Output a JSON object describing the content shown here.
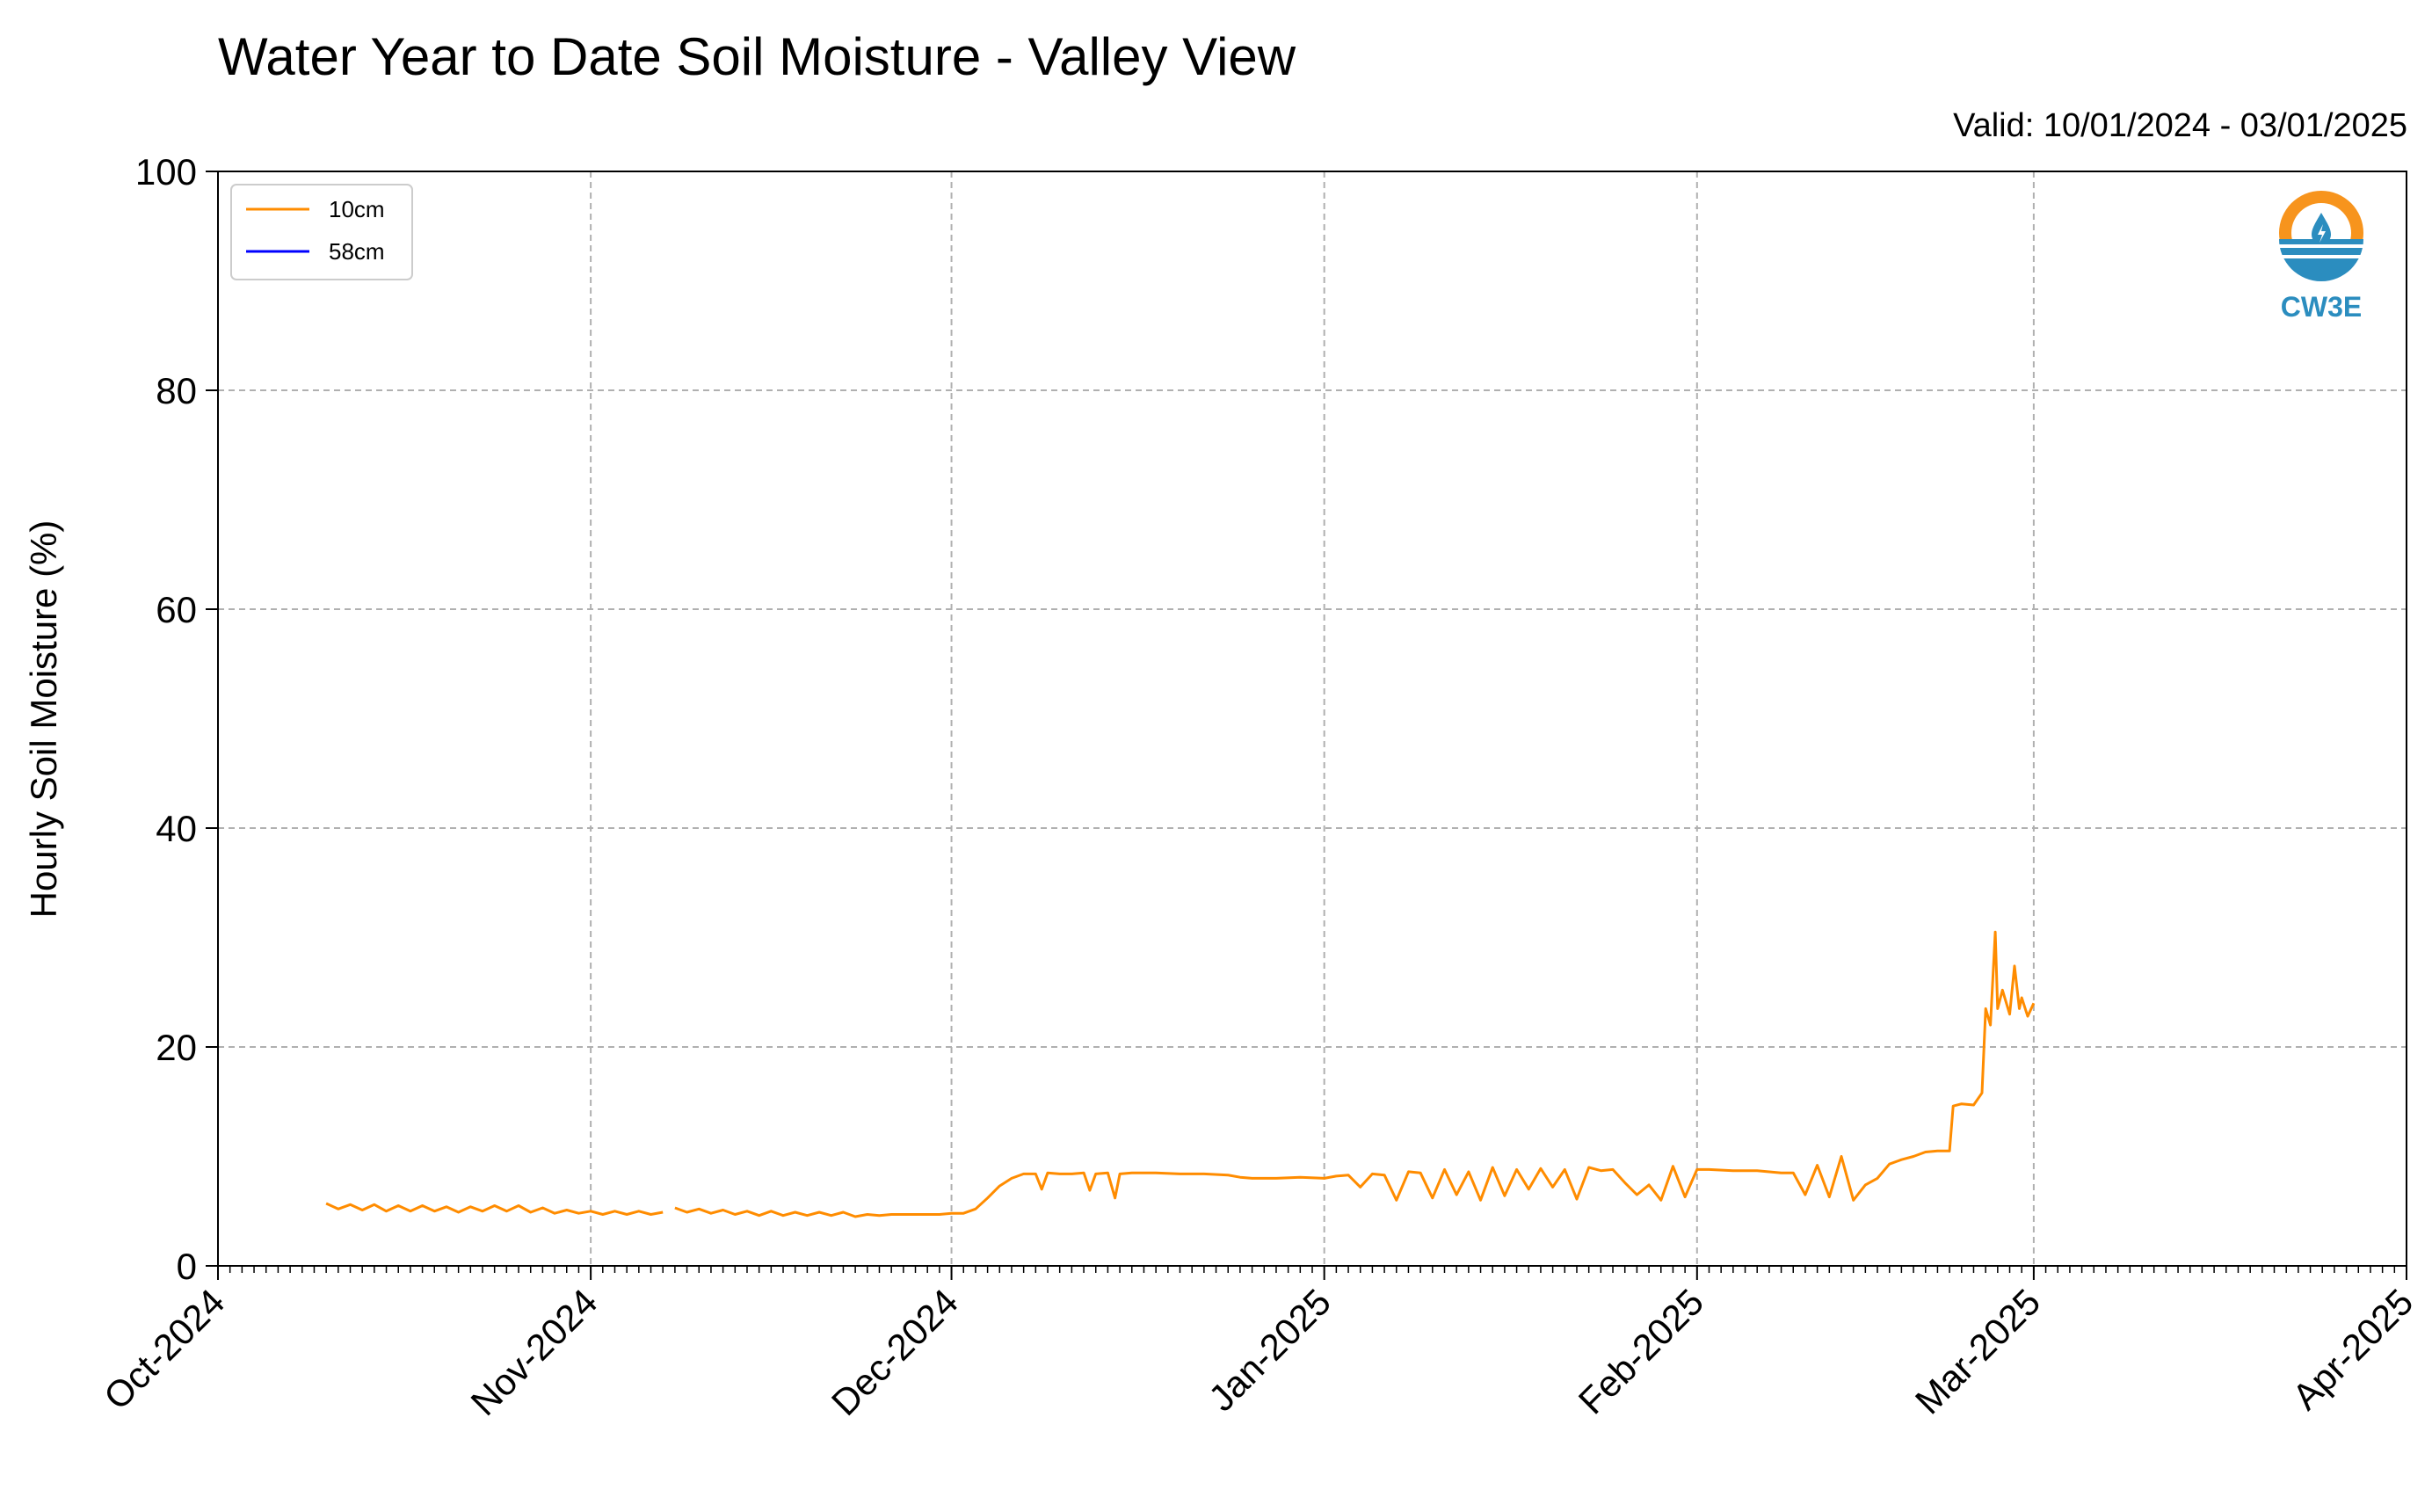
{
  "title": "Water Year to Date Soil Moisture - Valley View",
  "valid": "Valid: 10/01/2024 - 03/01/2025",
  "logo_text": "CW3E",
  "colors": {
    "series_10cm": "#ff8c00",
    "series_58cm": "#0000ff",
    "grid": "#b0b0b0",
    "logo_orange": "#f7941d",
    "logo_blue": "#2b8dbf"
  },
  "chart_data": {
    "type": "line",
    "ylabel": "Hourly Soil Moisture (%)",
    "ylim": [
      0,
      100
    ],
    "yticks": [
      "0",
      "20",
      "40",
      "60",
      "80",
      "100"
    ],
    "xlim": [
      "2024-10-01",
      "2025-04-01"
    ],
    "xticks": [
      {
        "date": "2024-10-01",
        "label": "Oct-2024"
      },
      {
        "date": "2024-11-01",
        "label": "Nov-2024"
      },
      {
        "date": "2024-12-01",
        "label": "Dec-2024"
      },
      {
        "date": "2025-01-01",
        "label": "Jan-2025"
      },
      {
        "date": "2025-02-01",
        "label": "Feb-2025"
      },
      {
        "date": "2025-03-01",
        "label": "Mar-2025"
      },
      {
        "date": "2025-04-01",
        "label": "Apr-2025"
      }
    ],
    "grid": true,
    "legend_position": "top-left",
    "series": [
      {
        "name": "10cm",
        "points": [
          [
            "2024-10-10",
            5.7
          ],
          [
            "2024-10-11",
            5.2
          ],
          [
            "2024-10-12",
            5.6
          ],
          [
            "2024-10-13",
            5.1
          ],
          [
            "2024-10-14",
            5.6
          ],
          [
            "2024-10-15",
            5.0
          ],
          [
            "2024-10-16",
            5.5
          ],
          [
            "2024-10-17",
            5.0
          ],
          [
            "2024-10-18",
            5.5
          ],
          [
            "2024-10-19",
            5.0
          ],
          [
            "2024-10-20",
            5.4
          ],
          [
            "2024-10-21",
            4.9
          ],
          [
            "2024-10-22",
            5.4
          ],
          [
            "2024-10-23",
            5.0
          ],
          [
            "2024-10-24",
            5.5
          ],
          [
            "2024-10-25",
            5.0
          ],
          [
            "2024-10-26",
            5.5
          ],
          [
            "2024-10-27",
            4.9
          ],
          [
            "2024-10-28",
            5.3
          ],
          [
            "2024-10-29",
            4.8
          ],
          [
            "2024-10-30",
            5.1
          ],
          [
            "2024-10-31",
            4.8
          ],
          [
            "2024-11-01",
            5.0
          ],
          [
            "2024-11-02",
            4.7
          ],
          [
            "2024-11-03",
            5.0
          ],
          [
            "2024-11-04",
            4.7
          ],
          [
            "2024-11-05",
            5.0
          ],
          [
            "2024-11-06",
            4.7
          ],
          [
            "2024-11-07",
            4.9
          ],
          null,
          [
            "2024-11-08",
            5.3
          ],
          [
            "2024-11-09",
            4.9
          ],
          [
            "2024-11-10",
            5.2
          ],
          [
            "2024-11-11",
            4.8
          ],
          [
            "2024-11-12",
            5.1
          ],
          [
            "2024-11-13",
            4.7
          ],
          [
            "2024-11-14",
            5.0
          ],
          [
            "2024-11-15",
            4.6
          ],
          [
            "2024-11-16",
            5.0
          ],
          [
            "2024-11-17",
            4.6
          ],
          [
            "2024-11-18",
            4.9
          ],
          [
            "2024-11-19",
            4.6
          ],
          [
            "2024-11-20",
            4.9
          ],
          [
            "2024-11-21",
            4.6
          ],
          [
            "2024-11-22",
            4.9
          ],
          [
            "2024-11-23",
            4.5
          ],
          [
            "2024-11-24",
            4.7
          ],
          [
            "2024-11-25",
            4.6
          ],
          [
            "2024-11-26",
            4.7
          ],
          [
            "2024-11-28",
            4.7
          ],
          [
            "2024-11-30",
            4.7
          ],
          [
            "2024-12-01",
            4.8
          ],
          [
            "2024-12-02",
            4.8
          ],
          [
            "2024-12-03",
            5.2
          ],
          [
            "2024-12-04",
            6.2
          ],
          [
            "2024-12-05",
            7.3
          ],
          [
            "2024-12-06",
            8.0
          ],
          [
            "2024-12-07",
            8.4
          ],
          [
            "2024-12-08",
            8.4
          ],
          [
            "2024-12-08.5",
            7.0
          ],
          [
            "2024-12-09",
            8.5
          ],
          [
            "2024-12-10",
            8.4
          ],
          [
            "2024-12-11",
            8.4
          ],
          [
            "2024-12-12",
            8.5
          ],
          [
            "2024-12-12.5",
            6.9
          ],
          [
            "2024-12-13",
            8.4
          ],
          [
            "2024-12-14",
            8.5
          ],
          [
            "2024-12-14.6",
            6.2
          ],
          [
            "2024-12-15",
            8.4
          ],
          [
            "2024-12-16",
            8.5
          ],
          [
            "2024-12-18",
            8.5
          ],
          [
            "2024-12-20",
            8.4
          ],
          [
            "2024-12-22",
            8.4
          ],
          [
            "2024-12-24",
            8.3
          ],
          [
            "2024-12-25",
            8.1
          ],
          [
            "2024-12-26",
            8.0
          ],
          [
            "2024-12-28",
            8.0
          ],
          [
            "2024-12-30",
            8.1
          ],
          [
            "2025-01-01",
            8.0
          ],
          [
            "2025-01-02",
            8.2
          ],
          [
            "2025-01-03",
            8.3
          ],
          [
            "2025-01-04",
            7.2
          ],
          [
            "2025-01-05",
            8.4
          ],
          [
            "2025-01-06",
            8.3
          ],
          [
            "2025-01-07",
            6.0
          ],
          [
            "2025-01-08",
            8.6
          ],
          [
            "2025-01-09",
            8.5
          ],
          [
            "2025-01-10",
            6.2
          ],
          [
            "2025-01-11",
            8.8
          ],
          [
            "2025-01-12",
            6.5
          ],
          [
            "2025-01-13",
            8.6
          ],
          [
            "2025-01-14",
            6.0
          ],
          [
            "2025-01-15",
            9.0
          ],
          [
            "2025-01-16",
            6.4
          ],
          [
            "2025-01-17",
            8.8
          ],
          [
            "2025-01-18",
            7.0
          ],
          [
            "2025-01-19",
            8.9
          ],
          [
            "2025-01-20",
            7.2
          ],
          [
            "2025-01-21",
            8.8
          ],
          [
            "2025-01-22",
            6.1
          ],
          [
            "2025-01-23",
            9.0
          ],
          [
            "2025-01-24",
            8.7
          ],
          [
            "2025-01-25",
            8.8
          ],
          [
            "2025-01-26",
            7.6
          ],
          [
            "2025-01-27",
            6.5
          ],
          [
            "2025-01-28",
            7.4
          ],
          [
            "2025-01-29",
            6.0
          ],
          [
            "2025-01-30",
            9.1
          ],
          [
            "2025-01-31",
            6.3
          ],
          [
            "2025-02-01",
            8.8
          ],
          [
            "2025-02-02",
            8.8
          ],
          [
            "2025-02-04",
            8.7
          ],
          [
            "2025-02-06",
            8.7
          ],
          [
            "2025-02-08",
            8.5
          ],
          [
            "2025-02-09",
            8.5
          ],
          [
            "2025-02-10",
            6.5
          ],
          [
            "2025-02-11",
            9.2
          ],
          [
            "2025-02-12",
            6.3
          ],
          [
            "2025-02-13",
            10.0
          ],
          [
            "2025-02-14",
            6.0
          ],
          [
            "2025-02-15",
            7.4
          ],
          [
            "2025-02-16",
            8.0
          ],
          [
            "2025-02-17",
            9.3
          ],
          [
            "2025-02-18",
            9.7
          ],
          [
            "2025-02-19",
            10.0
          ],
          [
            "2025-02-20",
            10.4
          ],
          [
            "2025-02-21",
            10.5
          ],
          [
            "2025-02-22",
            10.5
          ],
          [
            "2025-02-22.3",
            14.6
          ],
          [
            "2025-02-23",
            14.8
          ],
          [
            "2025-02-24",
            14.7
          ],
          [
            "2025-02-24.7",
            15.8
          ],
          [
            "2025-02-25",
            23.5
          ],
          [
            "2025-02-25.4",
            22.0
          ],
          [
            "2025-02-25.8",
            30.5
          ],
          [
            "2025-02-26",
            23.5
          ],
          [
            "2025-02-26.4",
            25.2
          ],
          [
            "2025-02-27",
            23.0
          ],
          [
            "2025-02-27.4",
            27.4
          ],
          [
            "2025-02-27.8",
            23.5
          ],
          [
            "2025-02-28",
            24.5
          ],
          [
            "2025-02-28.5",
            22.8
          ],
          [
            "2025-03-01",
            24.0
          ]
        ]
      },
      {
        "name": "58cm",
        "points": []
      }
    ]
  }
}
